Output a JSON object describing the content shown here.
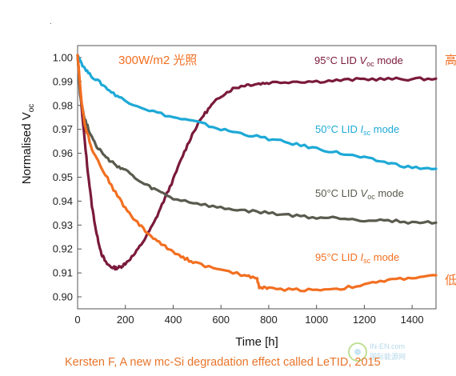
{
  "chart_data": {
    "type": "line",
    "xlabel": "Time [h]",
    "ylabel": "Normalised V",
    "ylabel_sub": "oc",
    "xlim": [
      0,
      1500
    ],
    "ylim": [
      0.895,
      1.005
    ],
    "x_ticks": [
      0,
      200,
      400,
      600,
      800,
      1000,
      1200,
      1400
    ],
    "y_ticks": [
      0.9,
      0.91,
      0.92,
      0.93,
      0.94,
      0.95,
      0.96,
      0.97,
      0.98,
      0.99,
      1.0
    ],
    "x_tick_labels": [
      "0",
      "200",
      "400",
      "600",
      "800",
      "1000",
      "1200",
      "1400"
    ],
    "y_tick_labels": [
      "0.90",
      "0.91",
      "0.92",
      "0.93",
      "0.94",
      "0.95",
      "0.96",
      "0.97",
      "0.98",
      "0.99",
      "1.00"
    ],
    "grid": false,
    "series": [
      {
        "name": "95°C LID Voc mode",
        "color": "#7a1a3c",
        "points": [
          [
            0,
            1.001
          ],
          [
            20,
            0.975
          ],
          [
            40,
            0.955
          ],
          [
            60,
            0.938
          ],
          [
            80,
            0.926
          ],
          [
            100,
            0.918
          ],
          [
            120,
            0.914
          ],
          [
            140,
            0.9125
          ],
          [
            160,
            0.912
          ],
          [
            180,
            0.9125
          ],
          [
            200,
            0.914
          ],
          [
            240,
            0.918
          ],
          [
            280,
            0.924
          ],
          [
            320,
            0.931
          ],
          [
            360,
            0.94
          ],
          [
            400,
            0.949
          ],
          [
            440,
            0.959
          ],
          [
            480,
            0.968
          ],
          [
            520,
            0.975
          ],
          [
            560,
            0.98
          ],
          [
            600,
            0.984
          ],
          [
            650,
            0.987
          ],
          [
            700,
            0.9885
          ],
          [
            750,
            0.989
          ],
          [
            800,
            0.9895
          ],
          [
            900,
            0.99
          ],
          [
            1000,
            0.99
          ],
          [
            1100,
            0.9905
          ],
          [
            1200,
            0.991
          ],
          [
            1300,
            0.991
          ],
          [
            1400,
            0.991
          ],
          [
            1500,
            0.9912
          ]
        ]
      },
      {
        "name": "50°C LID Isc mode",
        "color": "#1ea9d6",
        "points": [
          [
            0,
            1.001
          ],
          [
            20,
            0.997
          ],
          [
            50,
            0.993
          ],
          [
            100,
            0.989
          ],
          [
            150,
            0.985
          ],
          [
            200,
            0.982
          ],
          [
            300,
            0.978
          ],
          [
            400,
            0.975
          ],
          [
            500,
            0.973
          ],
          [
            600,
            0.97
          ],
          [
            700,
            0.968
          ],
          [
            800,
            0.966
          ],
          [
            900,
            0.964
          ],
          [
            1000,
            0.962
          ],
          [
            1100,
            0.96
          ],
          [
            1200,
            0.958
          ],
          [
            1300,
            0.956
          ],
          [
            1400,
            0.954
          ],
          [
            1500,
            0.9535
          ]
        ]
      },
      {
        "name": "50°C LID Voc mode",
        "color": "#5a5a4e",
        "points": [
          [
            0,
            1.001
          ],
          [
            10,
            0.985
          ],
          [
            25,
            0.976
          ],
          [
            50,
            0.969
          ],
          [
            80,
            0.963
          ],
          [
            120,
            0.958
          ],
          [
            160,
            0.955
          ],
          [
            200,
            0.953
          ],
          [
            260,
            0.948
          ],
          [
            320,
            0.945
          ],
          [
            400,
            0.941
          ],
          [
            500,
            0.939
          ],
          [
            600,
            0.937
          ],
          [
            700,
            0.936
          ],
          [
            800,
            0.935
          ],
          [
            900,
            0.934
          ],
          [
            1000,
            0.933
          ],
          [
            1100,
            0.933
          ],
          [
            1200,
            0.932
          ],
          [
            1300,
            0.932
          ],
          [
            1400,
            0.931
          ],
          [
            1500,
            0.931
          ]
        ]
      },
      {
        "name": "95°C LID Isc mode",
        "color": "#f26f21",
        "points": [
          [
            0,
            1.001
          ],
          [
            15,
            0.983
          ],
          [
            30,
            0.972
          ],
          [
            60,
            0.962
          ],
          [
            100,
            0.954
          ],
          [
            150,
            0.945
          ],
          [
            200,
            0.937
          ],
          [
            250,
            0.931
          ],
          [
            300,
            0.926
          ],
          [
            350,
            0.922
          ],
          [
            400,
            0.919
          ],
          [
            450,
            0.916
          ],
          [
            500,
            0.914
          ],
          [
            600,
            0.911
          ],
          [
            700,
            0.909
          ],
          [
            750,
            0.908
          ],
          [
            760,
            0.904
          ],
          [
            800,
            0.9035
          ],
          [
            900,
            0.903
          ],
          [
            1000,
            0.903
          ],
          [
            1100,
            0.9035
          ],
          [
            1200,
            0.905
          ],
          [
            1300,
            0.907
          ],
          [
            1400,
            0.908
          ],
          [
            1500,
            0.909
          ]
        ]
      }
    ]
  },
  "annotations": {
    "top_left_note": "300W/m2 光照",
    "label_95_voc_prefix": "95°C LID ",
    "label_95_voc_v": "V",
    "label_95_voc_sub": "oc",
    "label_95_voc_suffix": " mode",
    "label_50_isc_prefix": "50°C LID ",
    "label_50_isc_v": "I",
    "label_50_isc_sub": "sc",
    "label_50_isc_suffix": " mode",
    "label_50_voc_prefix": "50°C LID ",
    "label_50_voc_v": "V",
    "label_50_voc_sub": "oc",
    "label_50_voc_suffix": " mode",
    "label_95_isc_prefix": "95°C LID ",
    "label_95_isc_v": "I",
    "label_95_isc_sub": "sc",
    "label_95_isc_suffix": " mode",
    "right_top_glyph": "高",
    "right_bottom_glyph": "低",
    "citation": "Kersten F, A new mc-Si degradation effect called LeTID, 2015",
    "watermark_top": "IN-EN.com",
    "watermark_bottom": "国际能源网",
    "dot_mark": "."
  },
  "colors": {
    "note_orange": "#f26f21",
    "voc95": "#7a1a3c",
    "isc50": "#1ea9d6",
    "voc50": "#5a5a4e",
    "isc95": "#f26f21",
    "citation": "#e8742a"
  }
}
